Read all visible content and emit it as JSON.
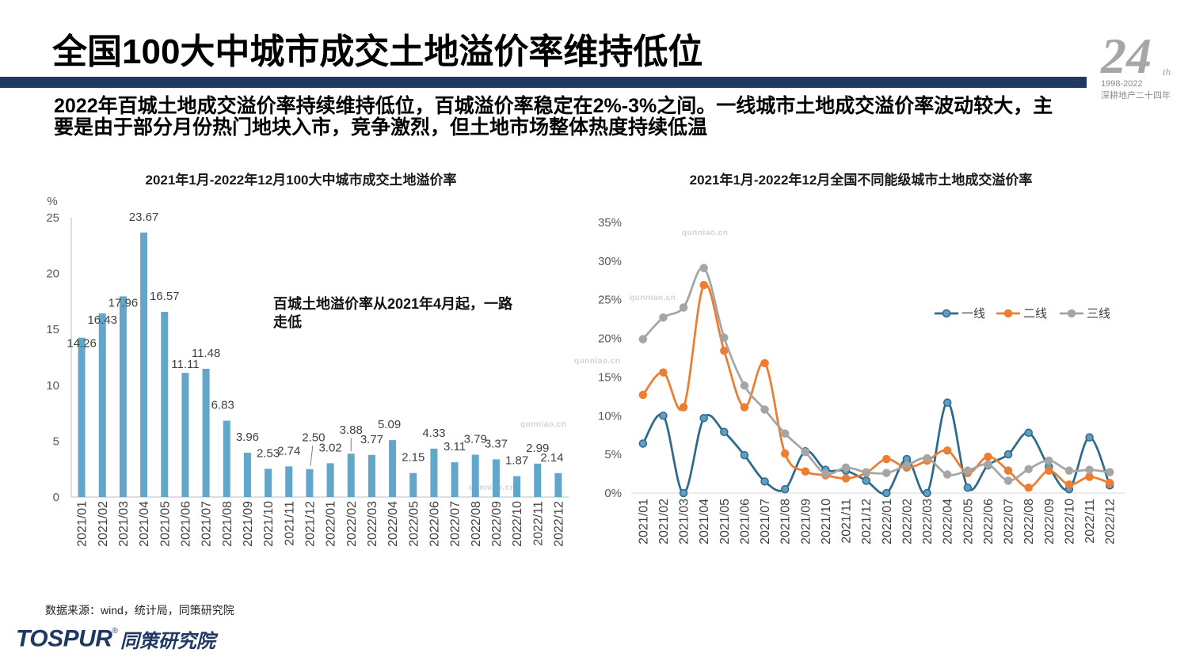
{
  "slide": {
    "title": "全国100大中城市成交土地溢价率维持低位",
    "summary": "2022年百城土地成交溢价率持续维持低位，百城溢价率稳定在2%-3%之间。一线城市土地成交溢价率波动较大，主要是由于部分月份热门地块入市，竞争激烈，但土地市场整体热度持续低温",
    "source_note": "数据来源：wind，统计局，同策研究院",
    "accent_color": "#1f3864"
  },
  "badge": {
    "number": "24",
    "suffix": "th",
    "years": "1998-2022",
    "tagline": "深耕地产二十四年"
  },
  "footer_logo": {
    "brand": "TOSPUR",
    "registered": "®",
    "name": "同策研究院"
  },
  "watermark": {
    "text": "qunniao.cn"
  },
  "chart_data": [
    {
      "type": "bar",
      "title": "2021年1月-2022年12月100大中城市成交土地溢价率",
      "ylabel": "%",
      "ylim": [
        0,
        25
      ],
      "yticks": [
        0,
        5,
        10,
        15,
        20,
        25
      ],
      "categories": [
        "2021/01",
        "2021/02",
        "2021/03",
        "2021/04",
        "2021/05",
        "2021/06",
        "2021/07",
        "2021/08",
        "2021/09",
        "2021/10",
        "2021/11",
        "2021/12",
        "2022/01",
        "2022/02",
        "2022/03",
        "2022/04",
        "2022/05",
        "2022/06",
        "2022/07",
        "2022/08",
        "2022/09",
        "2022/10",
        "2022/11",
        "2022/12"
      ],
      "values": [
        14.26,
        16.43,
        17.96,
        23.67,
        16.57,
        11.11,
        11.48,
        6.83,
        3.96,
        2.53,
        2.74,
        2.5,
        3.02,
        3.88,
        3.77,
        5.09,
        2.15,
        4.33,
        3.11,
        3.79,
        3.37,
        1.87,
        2.99,
        2.14
      ],
      "data_labels": true,
      "color": "#62a6c9",
      "annotation": "百城土地溢价率从2021年4月起，一路走低",
      "grid": false,
      "legend": "none"
    },
    {
      "type": "line",
      "title": "2021年1月-2022年12月全国不同能级城市土地成交溢价率",
      "y_unit": "%",
      "ylim": [
        0,
        35
      ],
      "yticks": [
        0,
        5,
        10,
        15,
        20,
        25,
        30,
        35
      ],
      "categories": [
        "2021/01",
        "2021/02",
        "2021/03",
        "2021/04",
        "2021/05",
        "2021/06",
        "2021/07",
        "2021/08",
        "2021/09",
        "2021/10",
        "2021/11",
        "2021/12",
        "2022/01",
        "2022/02",
        "2022/03",
        "2022/04",
        "2022/05",
        "2022/06",
        "2022/07",
        "2022/08",
        "2022/09",
        "2022/10",
        "2022/11",
        "2022/12"
      ],
      "series": [
        {
          "name": "一线",
          "color": "#2e6a8c",
          "marker_fill": "#5d9fc5",
          "values": [
            6.4,
            10.0,
            0.0,
            9.7,
            7.9,
            4.9,
            1.5,
            0.5,
            5.4,
            3.0,
            2.9,
            1.6,
            0.0,
            4.4,
            0.0,
            11.7,
            0.7,
            3.6,
            5.0,
            7.8,
            3.4,
            0.5,
            7.2,
            1.0
          ]
        },
        {
          "name": "二线",
          "color": "#ed7d31",
          "marker_fill": "#ed7d31",
          "values": [
            12.7,
            15.6,
            11.1,
            26.9,
            18.4,
            11.1,
            16.8,
            5.1,
            2.8,
            2.3,
            1.9,
            2.6,
            4.4,
            3.3,
            4.2,
            5.5,
            2.6,
            4.7,
            2.9,
            0.7,
            2.9,
            1.1,
            2.1,
            1.3
          ]
        },
        {
          "name": "三线",
          "color": "#a5a5a5",
          "marker_fill": "#a5a5a5",
          "values": [
            19.9,
            22.7,
            24.0,
            29.1,
            20.1,
            13.9,
            10.8,
            7.7,
            5.3,
            2.5,
            3.3,
            2.7,
            2.6,
            3.6,
            4.5,
            2.4,
            2.9,
            3.7,
            1.6,
            3.1,
            4.2,
            2.9,
            3.0,
            2.7
          ]
        }
      ],
      "smooth": true,
      "markers": true,
      "grid": false,
      "legend": "right"
    }
  ]
}
